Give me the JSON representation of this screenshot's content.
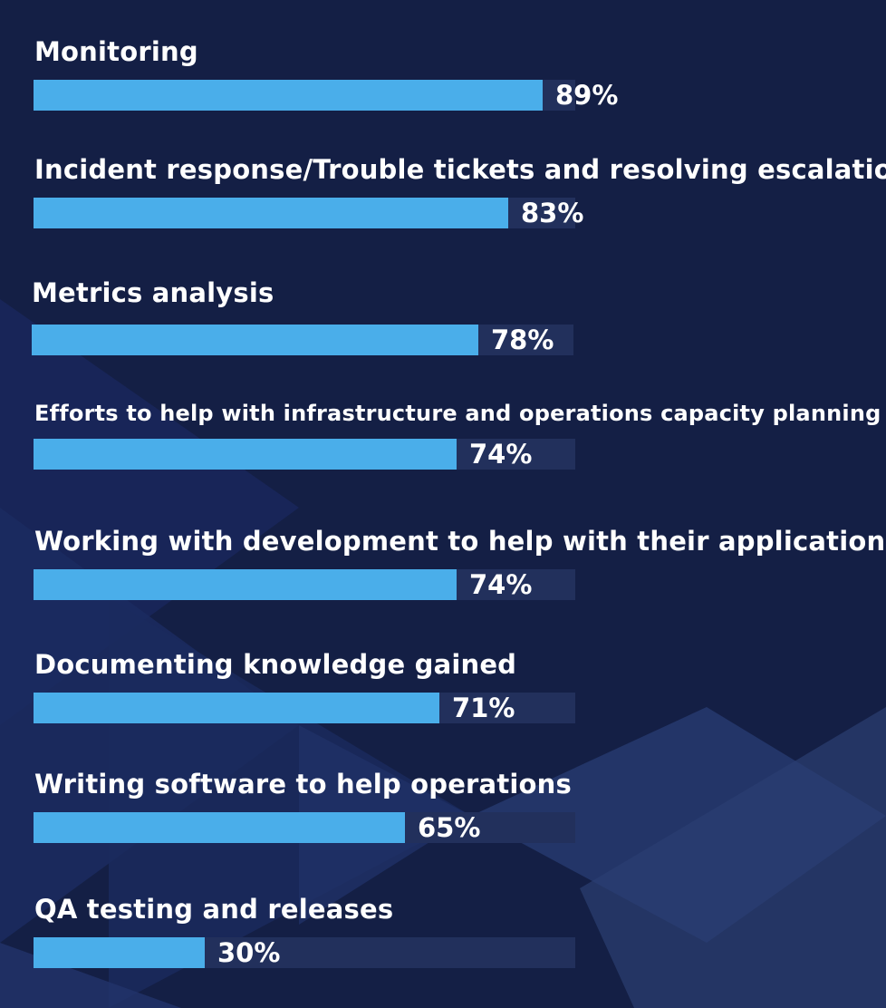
{
  "chart_data": {
    "type": "bar",
    "orientation": "horizontal",
    "categories": [
      "Monitoring",
      "Incident response/Trouble tickets and resolving escalations",
      "Metrics analysis",
      "Efforts to help with infrastructure and operations capacity planning",
      "Working with development to help with their applications",
      "Documenting knowledge gained",
      "Writing software to help operations",
      "QA testing and releases"
    ],
    "values": [
      89,
      83,
      78,
      74,
      74,
      71,
      65,
      30
    ],
    "value_labels": [
      "89%",
      "83%",
      "78%",
      "74%",
      "74%",
      "71%",
      "65%",
      "30%"
    ],
    "xlim": [
      0,
      100
    ],
    "grid": false,
    "colors": {
      "bar": "#4aaeea",
      "track": "#22305c",
      "background": "#141f45",
      "text": "#ffffff"
    }
  }
}
